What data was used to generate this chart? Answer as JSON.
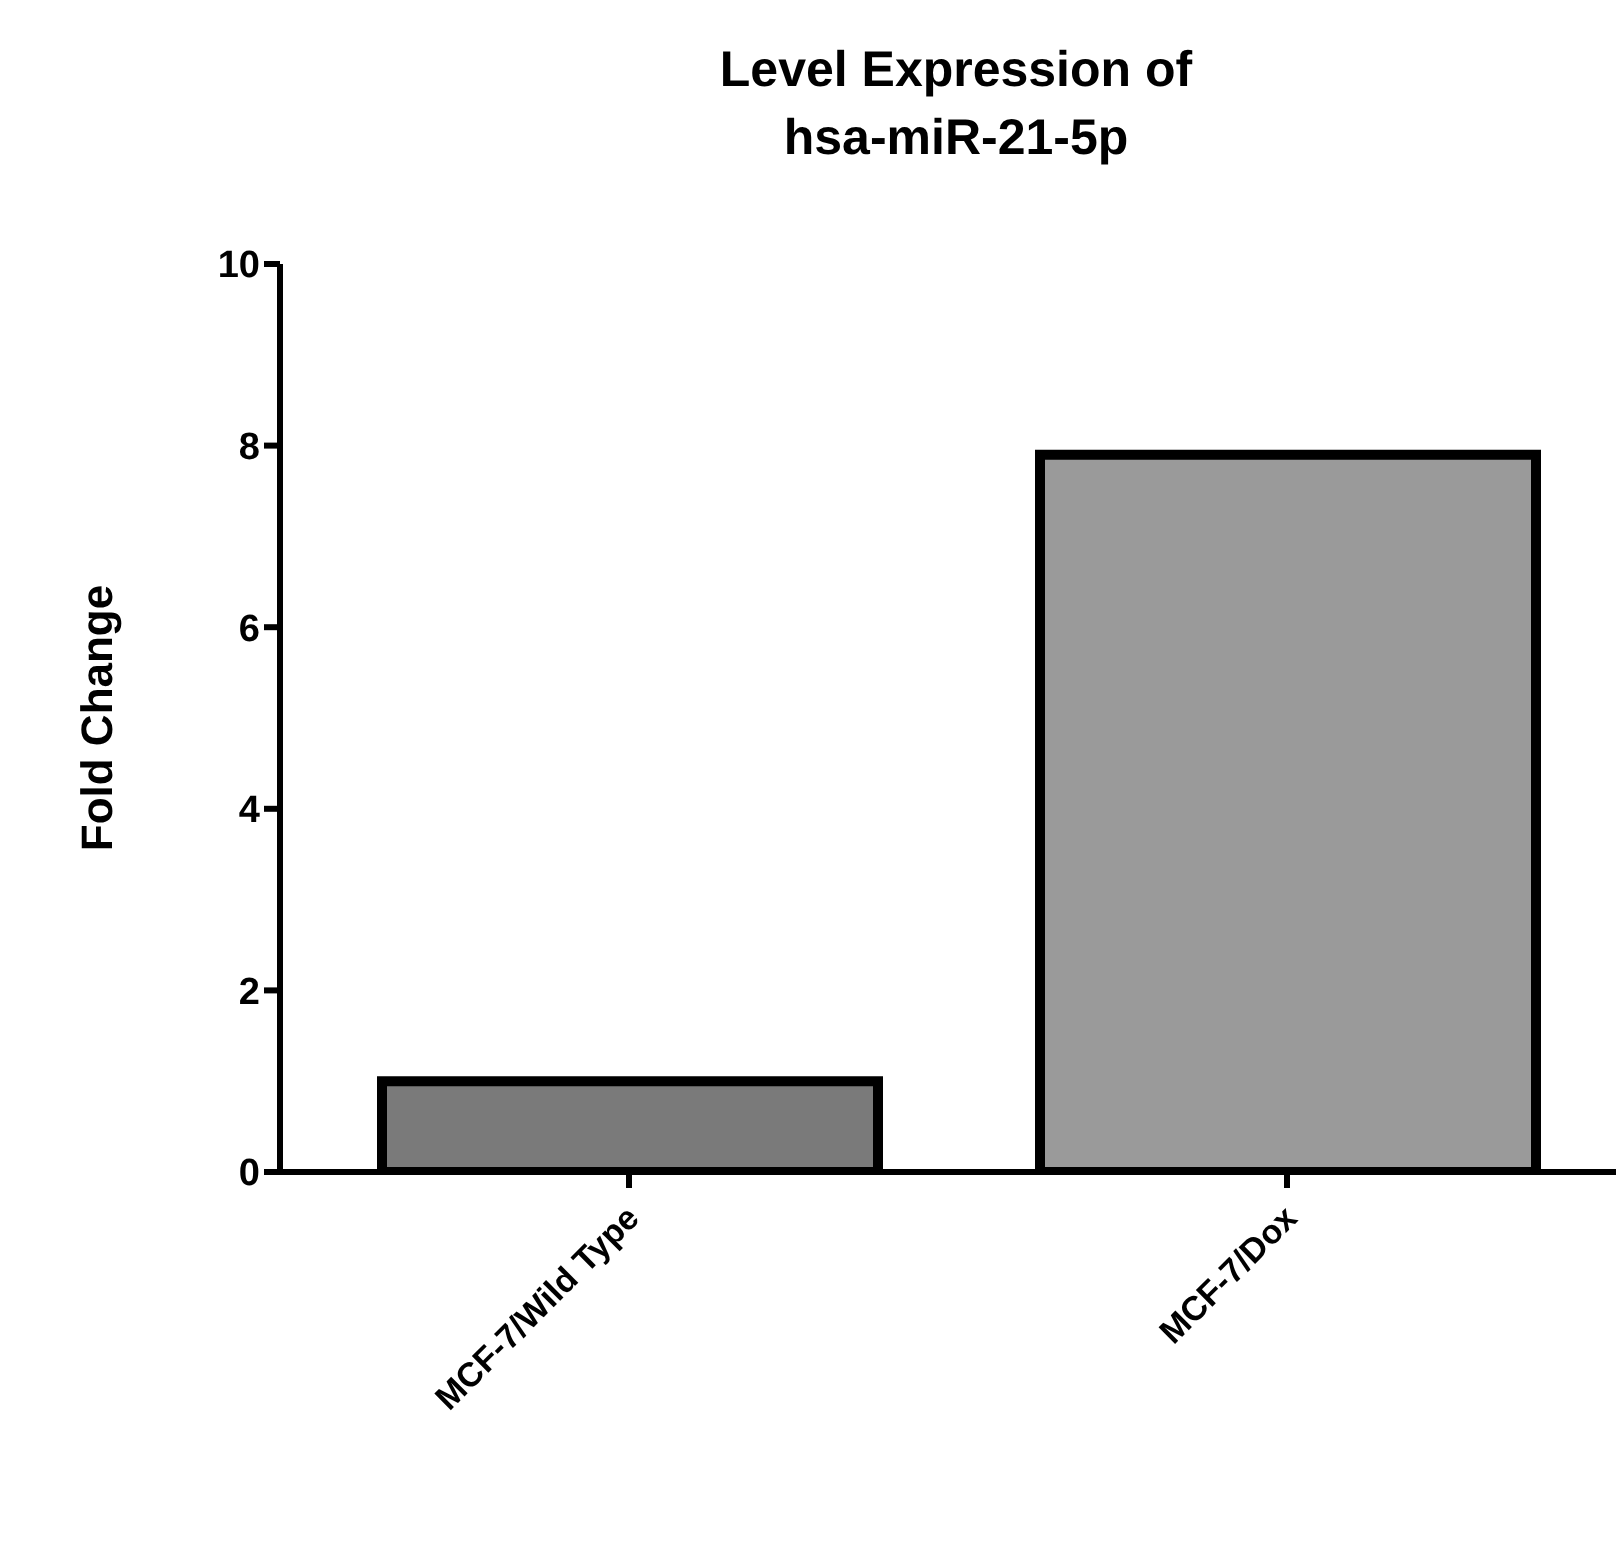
{
  "chart_data": {
    "type": "bar",
    "title": "Level Expression of\nhsa-miR-21-5p",
    "ylabel": "Fold Change",
    "categories": [
      "MCF-7/Wild Type",
      "MCF-7/Dox"
    ],
    "values": [
      1.0,
      7.9
    ],
    "colors": [
      "#7a7a7a",
      "#9a9a9a"
    ],
    "ylim": [
      0,
      10
    ],
    "yticks": [
      0,
      2,
      4,
      6,
      8,
      10
    ],
    "grid": false,
    "legend": false
  }
}
